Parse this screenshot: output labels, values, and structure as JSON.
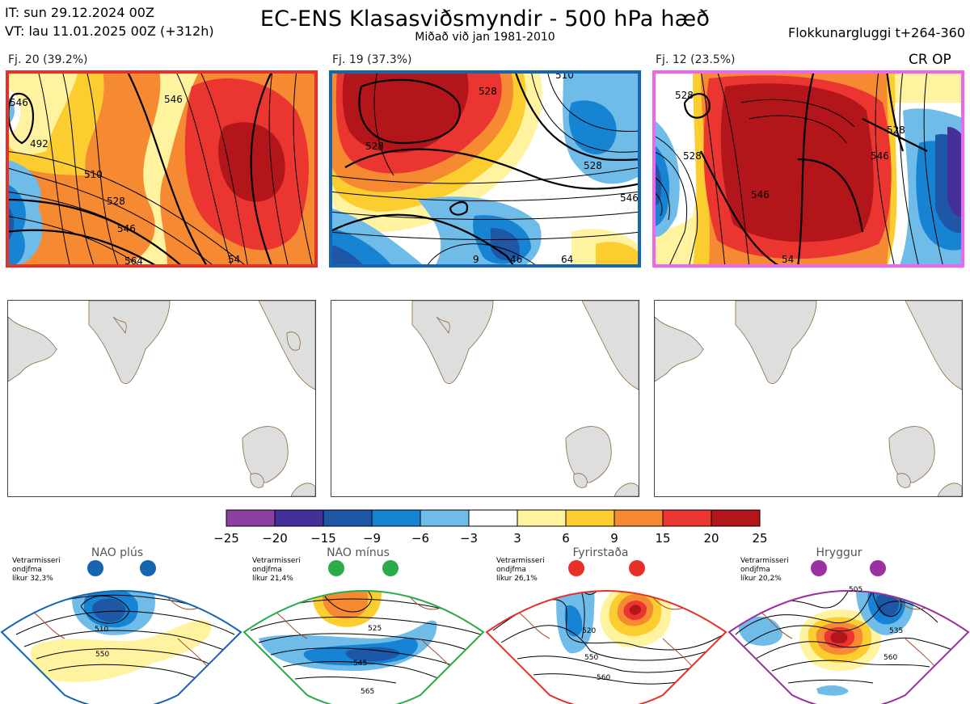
{
  "header": {
    "init_time": "IT: sun 29.12.2024 00Z",
    "valid_time": "VT: lau 11.01.2025 00Z  (+312h)",
    "title": "EC-ENS Klasasviðsmyndir - 500 hPa hæð",
    "subtitle": "Miðað við jan 1981-2010",
    "window": "Flokkunargluggi t+264-360"
  },
  "clusters": [
    {
      "label": "Fj. 20 (39.2%)",
      "members": 20,
      "percent": 39.2,
      "border_color": "#e8302a",
      "contour_labels": [
        "546",
        "492",
        "510",
        "528",
        "546",
        "564",
        "546",
        "54"
      ]
    },
    {
      "label": "Fj. 19 (37.3%)",
      "members": 19,
      "percent": 37.3,
      "border_color": "#1565b0",
      "contour_labels": [
        "528",
        "528",
        "510",
        "528",
        "546",
        "64",
        "9",
        "46"
      ]
    },
    {
      "label": "Fj. 12 (23.5%)",
      "members": 12,
      "percent": 23.5,
      "border_color": "#ee66ee",
      "contour_labels": [
        "528",
        "528",
        "528",
        "546",
        "546",
        "54"
      ]
    }
  ],
  "cr_op": "CR OP",
  "colorbar": {
    "ticks": [
      "−25",
      "−20",
      "−15",
      "−9",
      "−6",
      "−3",
      "3",
      "6",
      "9",
      "15",
      "20",
      "25"
    ],
    "colors": [
      "#8b3fa0",
      "#45309a",
      "#1d57a5",
      "#1684d3",
      "#6fbce8",
      "#ffffff",
      "#fff3a0",
      "#fccd2f",
      "#f58a32",
      "#ea3530",
      "#b2151a"
    ]
  },
  "regimes": [
    {
      "title": "NAO plús",
      "note_lines": [
        "Vetrarmisseri",
        "ondjfma",
        "líkur 32,3%"
      ],
      "probability": 32.3,
      "color": "#1565b0",
      "contour_labels": [
        "510",
        "550"
      ]
    },
    {
      "title": "NAO mínus",
      "note_lines": [
        "Vetrarmisseri",
        "ondjfma",
        "líkur 21,4%"
      ],
      "probability": 21.4,
      "color": "#2aac4a",
      "contour_labels": [
        "525",
        "545",
        "565"
      ]
    },
    {
      "title": "Fyrirstaða",
      "note_lines": [
        "Vetrarmisseri",
        "ondjfma",
        "líkur 26,1%"
      ],
      "probability": 26.1,
      "color": "#e8302a",
      "contour_labels": [
        "520",
        "550",
        "560"
      ]
    },
    {
      "title": "Hryggur",
      "note_lines": [
        "Vetrarmisseri",
        "ondjfma",
        "líkur 20,2%"
      ],
      "probability": 20.2,
      "color": "#9b30a0",
      "contour_labels": [
        "505",
        "535",
        "560"
      ]
    }
  ],
  "chart_data": {
    "type": "heatmap",
    "title": "EC-ENS Klasasviðsmyndir - 500 hPa hæð",
    "variable": "500 hPa height anomaly",
    "colorbar_ticks": [
      -25,
      -20,
      -15,
      -9,
      -6,
      -3,
      3,
      6,
      9,
      15,
      20,
      25
    ],
    "clusters": [
      {
        "name": "Fj. 20",
        "percent": 39.2
      },
      {
        "name": "Fj. 19",
        "percent": 37.3
      },
      {
        "name": "Fj. 12",
        "percent": 23.5
      }
    ],
    "regime_probabilities": [
      {
        "name": "NAO plús",
        "percent": 32.3
      },
      {
        "name": "NAO mínus",
        "percent": 21.4
      },
      {
        "name": "Fyrirstaða",
        "percent": 26.1
      },
      {
        "name": "Hryggur",
        "percent": 20.2
      }
    ]
  }
}
